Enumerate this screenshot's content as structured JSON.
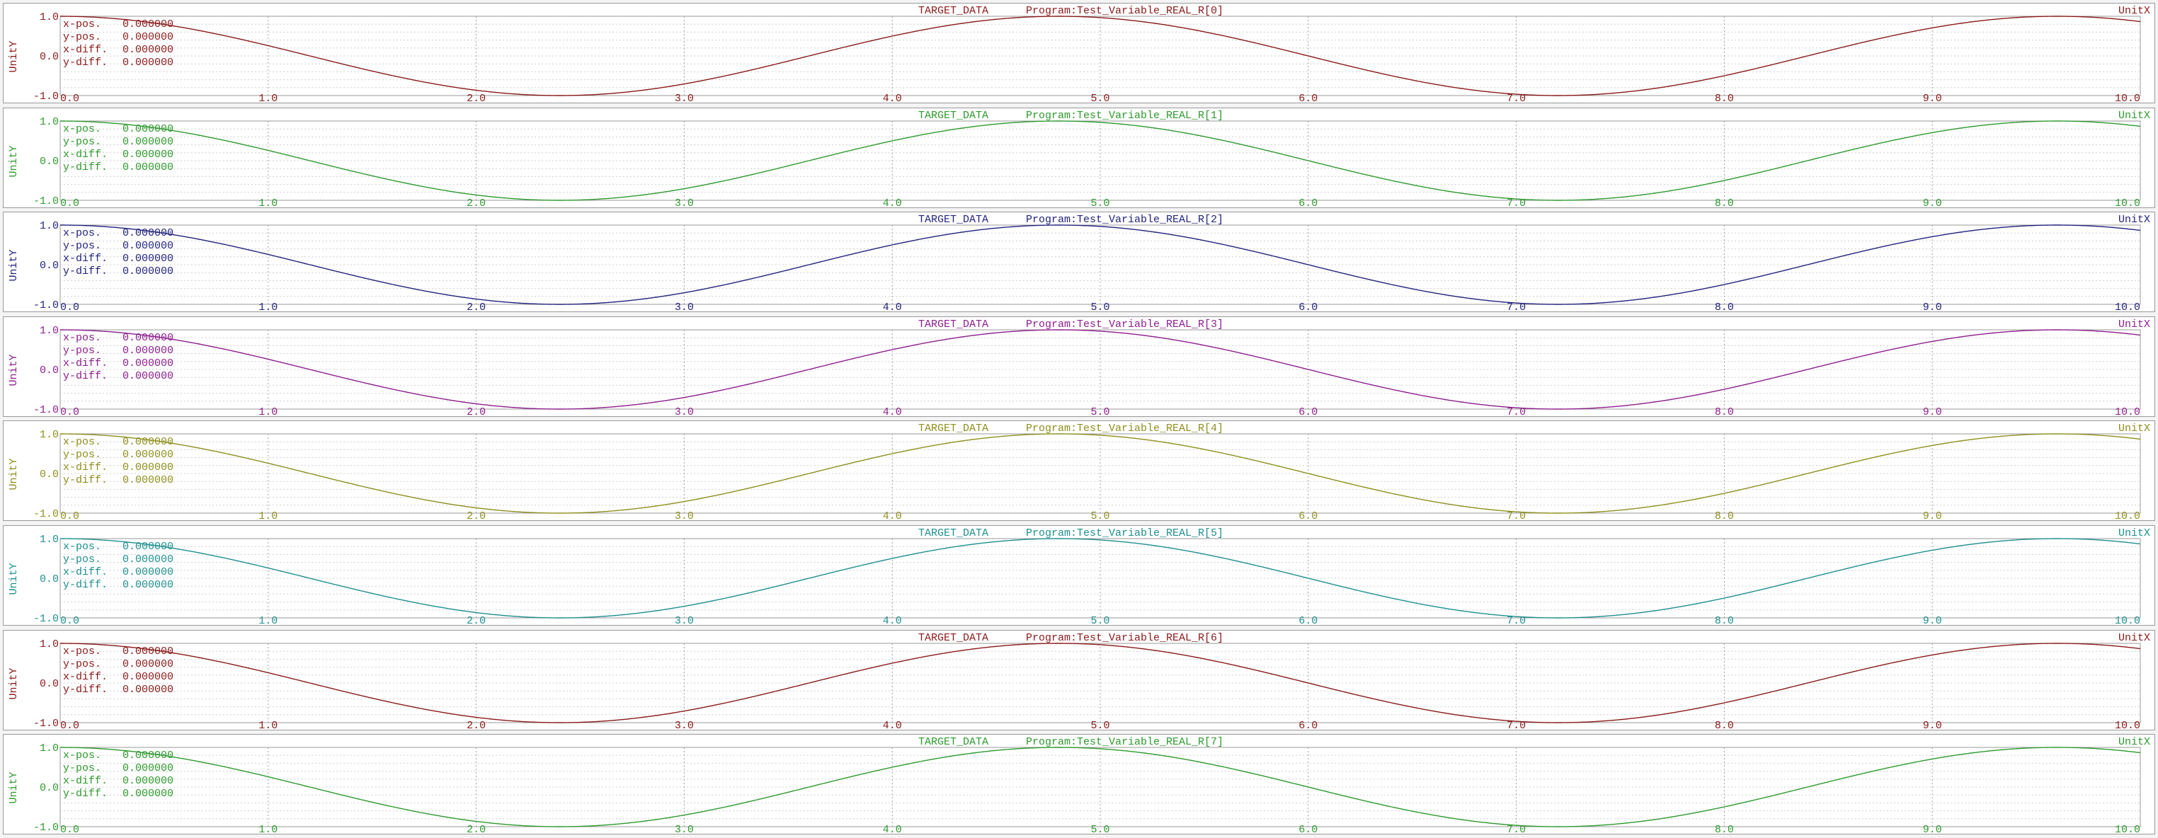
{
  "scope": {
    "labels": {
      "x_unit": "UnitX",
      "y_unit": "UnitY",
      "source": "TARGET_DATA"
    },
    "cursor_readout": [
      {
        "label": "x-pos.",
        "value": "0.000000"
      },
      {
        "label": "y-pos.",
        "value": "0.000000"
      },
      {
        "label": "x-diff.",
        "value": "0.000000"
      },
      {
        "label": "y-diff.",
        "value": "0.000000"
      }
    ],
    "channels": [
      {
        "variable": "Program:Test_Variable_REAL_R[0]",
        "color": "#8b1a1a"
      },
      {
        "variable": "Program:Test_Variable_REAL_R[1]",
        "color": "#2e9a2e"
      },
      {
        "variable": "Program:Test_Variable_REAL_R[2]",
        "color": "#23237f"
      },
      {
        "variable": "Program:Test_Variable_REAL_R[3]",
        "color": "#8e1f8e"
      },
      {
        "variable": "Program:Test_Variable_REAL_R[4]",
        "color": "#8f8f1f"
      },
      {
        "variable": "Program:Test_Variable_REAL_R[5]",
        "color": "#1f8f8f"
      },
      {
        "variable": "Program:Test_Variable_REAL_R[6]",
        "color": "#8b1a1a"
      },
      {
        "variable": "Program:Test_Variable_REAL_R[7]",
        "color": "#2e9a2e"
      }
    ]
  },
  "chart_data": {
    "type": "line",
    "x_ticks": [
      "0.0",
      "1.0",
      "2.0",
      "3.0",
      "4.0",
      "5.0",
      "6.0",
      "7.0",
      "8.0",
      "9.0",
      "10.0"
    ],
    "y_ticks": [
      "1.0",
      "0.0",
      "-1.0"
    ],
    "xlim": [
      0,
      10
    ],
    "ylim": [
      -1,
      1
    ],
    "grid": true,
    "series_formula": "y = cos(2*pi*x/4.8)",
    "x": [
      0,
      0.6,
      1.2,
      1.8,
      2.4,
      3.0,
      3.6,
      4.2,
      4.8,
      5.4,
      6.0,
      6.6,
      7.2,
      7.8,
      8.4,
      9.0,
      9.6,
      10.0
    ],
    "series": [
      {
        "name": "Program:Test_Variable_REAL_R[0]",
        "values": [
          1.0,
          0.71,
          0.0,
          -0.71,
          -1.0,
          -0.71,
          0.0,
          0.71,
          1.0,
          0.71,
          0.0,
          -0.71,
          -1.0,
          -0.71,
          0.0,
          0.71,
          1.0,
          0.87
        ]
      },
      {
        "name": "Program:Test_Variable_REAL_R[1]",
        "values": [
          1.0,
          0.71,
          0.0,
          -0.71,
          -1.0,
          -0.71,
          0.0,
          0.71,
          1.0,
          0.71,
          0.0,
          -0.71,
          -1.0,
          -0.71,
          0.0,
          0.71,
          1.0,
          0.87
        ]
      },
      {
        "name": "Program:Test_Variable_REAL_R[2]",
        "values": [
          1.0,
          0.71,
          0.0,
          -0.71,
          -1.0,
          -0.71,
          0.0,
          0.71,
          1.0,
          0.71,
          0.0,
          -0.71,
          -1.0,
          -0.71,
          0.0,
          0.71,
          1.0,
          0.87
        ]
      },
      {
        "name": "Program:Test_Variable_REAL_R[3]",
        "values": [
          1.0,
          0.71,
          0.0,
          -0.71,
          -1.0,
          -0.71,
          0.0,
          0.71,
          1.0,
          0.71,
          0.0,
          -0.71,
          -1.0,
          -0.71,
          0.0,
          0.71,
          1.0,
          0.87
        ]
      },
      {
        "name": "Program:Test_Variable_REAL_R[4]",
        "values": [
          1.0,
          0.71,
          0.0,
          -0.71,
          -1.0,
          -0.71,
          0.0,
          0.71,
          1.0,
          0.71,
          0.0,
          -0.71,
          -1.0,
          -0.71,
          0.0,
          0.71,
          1.0,
          0.87
        ]
      },
      {
        "name": "Program:Test_Variable_REAL_R[5]",
        "values": [
          1.0,
          0.71,
          0.0,
          -0.71,
          -1.0,
          -0.71,
          0.0,
          0.71,
          1.0,
          0.71,
          0.0,
          -0.71,
          -1.0,
          -0.71,
          0.0,
          0.71,
          1.0,
          0.87
        ]
      },
      {
        "name": "Program:Test_Variable_REAL_R[6]",
        "values": [
          1.0,
          0.71,
          0.0,
          -0.71,
          -1.0,
          -0.71,
          0.0,
          0.71,
          1.0,
          0.71,
          0.0,
          -0.71,
          -1.0,
          -0.71,
          0.0,
          0.71,
          1.0,
          0.87
        ]
      },
      {
        "name": "Program:Test_Variable_REAL_R[7]",
        "values": [
          1.0,
          0.71,
          0.0,
          -0.71,
          -1.0,
          -0.71,
          0.0,
          0.71,
          1.0,
          0.71,
          0.0,
          -0.71,
          -1.0,
          -0.71,
          0.0,
          0.71,
          1.0,
          0.87
        ]
      }
    ]
  }
}
